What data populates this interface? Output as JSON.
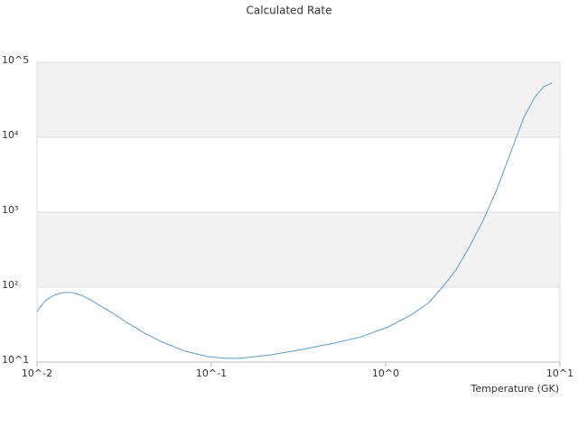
{
  "chart_data": {
    "type": "line",
    "title": "Calculated Rate",
    "x_label": "Temperature (GK)",
    "x": [
      0.01,
      0.01114,
      0.01253,
      0.01413,
      0.0159,
      0.01794,
      0.02023,
      0.0228,
      0.02724,
      0.03258,
      0.04139,
      0.05248,
      0.07079,
      0.0953,
      0.121,
      0.145,
      0.22,
      0.314,
      0.507,
      0.724,
      1.037,
      1.397,
      1.774,
      2.12,
      2.53,
      3.03,
      3.63,
      4.34,
      5.19,
      6.21,
      7.16,
      8.07,
      8.98
    ],
    "values": [
      47.3,
      65.9,
      78,
      84.7,
      84.7,
      78,
      67.8,
      57.4,
      44.8,
      33.9,
      24.3,
      18.4,
      13.95,
      11.8,
      11.2,
      11.2,
      12.5,
      14.4,
      17.9,
      21.7,
      29.5,
      42.4,
      62.4,
      100,
      169,
      348,
      780,
      2000,
      6070,
      18400,
      33900,
      47300,
      52800
    ],
    "color": "#5b9bd5",
    "xscale": "log",
    "yscale": "log",
    "xlim": [
      0.01,
      10
    ],
    "ylim": [
      10,
      100000
    ],
    "xticks": [
      {
        "value": 0.01,
        "label": "10^-2"
      },
      {
        "value": 0.1,
        "label": "10^-1"
      },
      {
        "value": 1,
        "label": "10^0"
      },
      {
        "value": 10,
        "label": "10^1"
      }
    ],
    "yticks": [
      {
        "value": 10,
        "label": "10^1"
      },
      {
        "value": 100,
        "label": "10²"
      },
      {
        "value": 1000,
        "label": "10³"
      },
      {
        "value": 10000,
        "label": "10⁴"
      },
      {
        "value": 100000,
        "label": "10^5"
      }
    ],
    "grid": true,
    "grid_band_color": "#f2f2f2"
  }
}
